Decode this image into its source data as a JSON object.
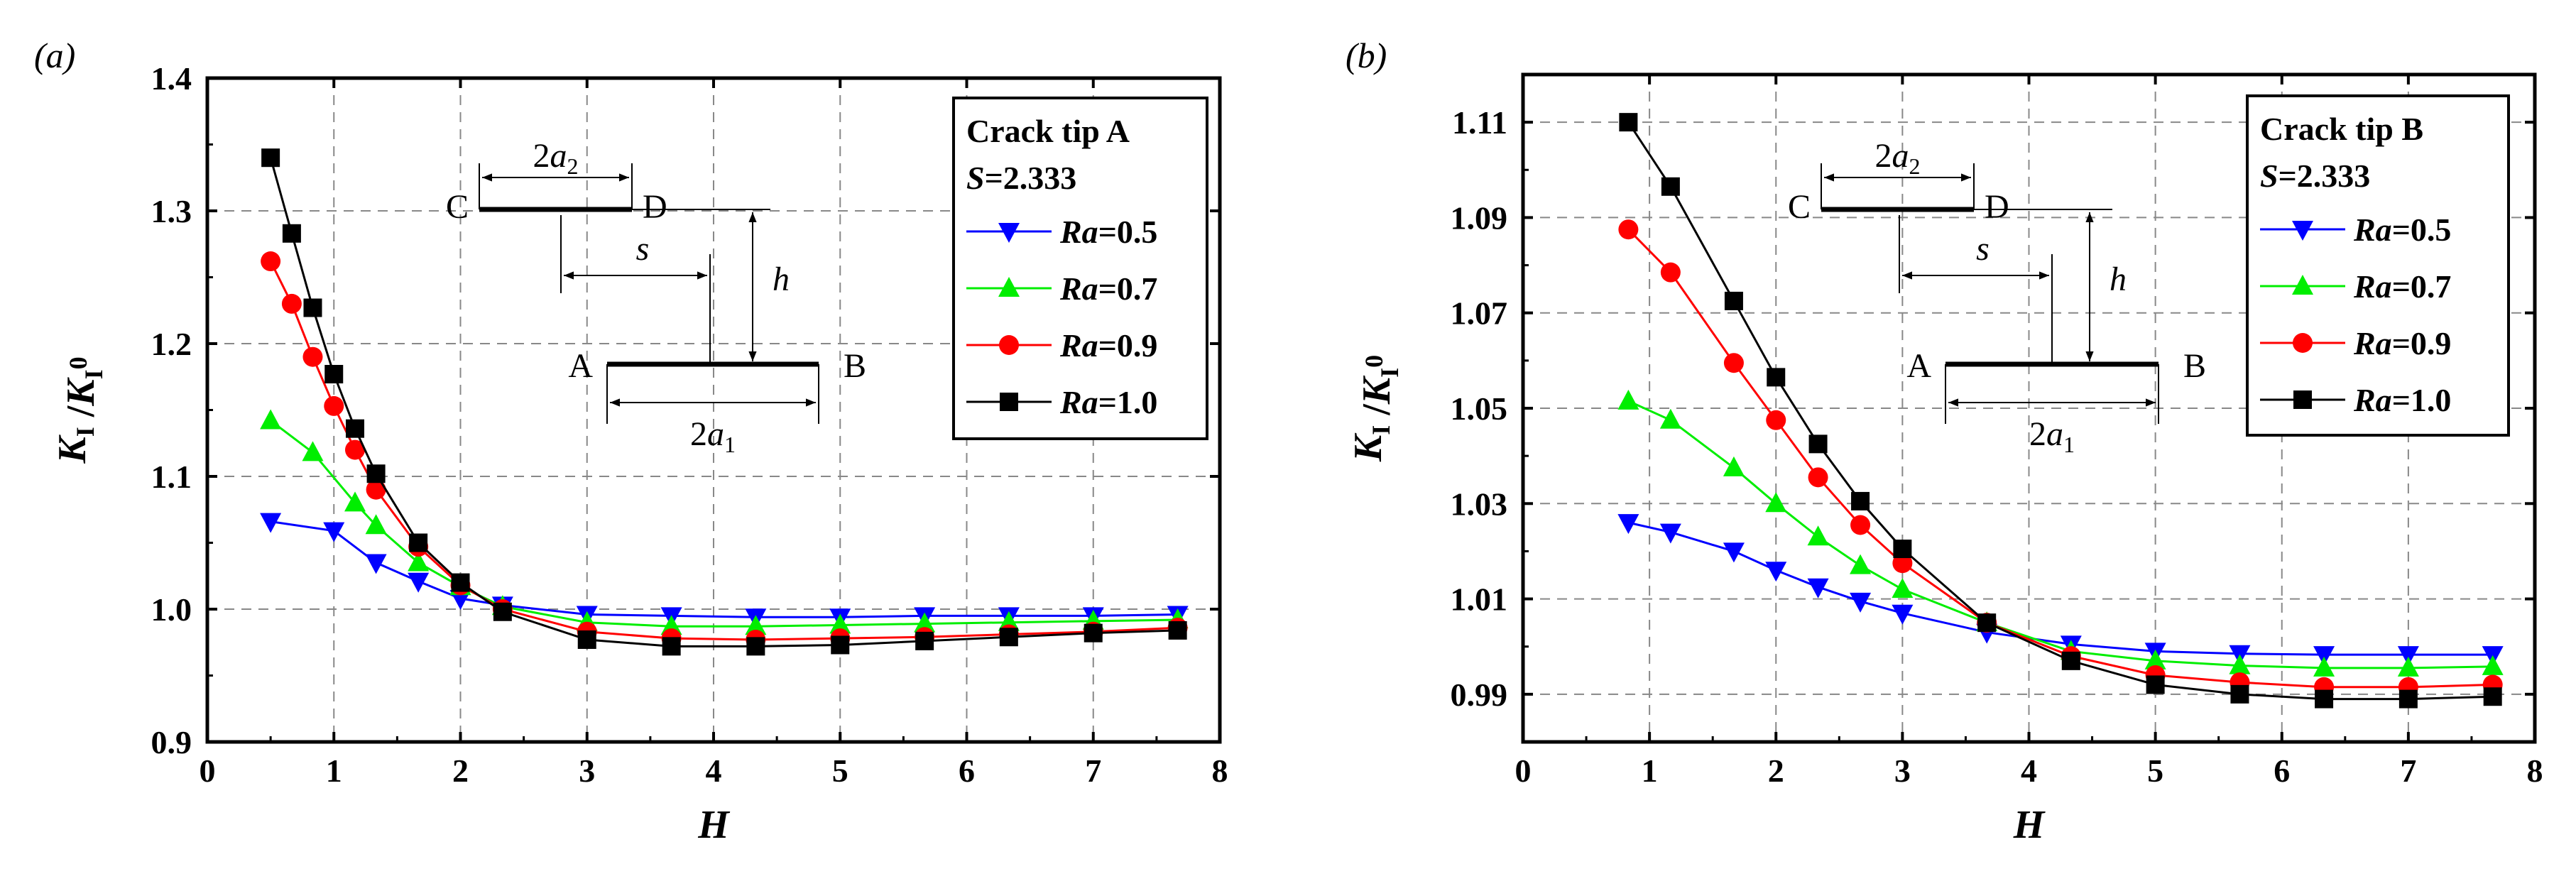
{
  "chart_data": [
    {
      "type": "line",
      "panel_label": "(a)",
      "xlabel": "H",
      "ylabel": "K_I / K_I^0",
      "xlim": [
        0,
        8
      ],
      "ylim": [
        0.9,
        1.4
      ],
      "xticks": [
        "0",
        "1",
        "2",
        "3",
        "4",
        "5",
        "6",
        "7",
        "8"
      ],
      "yticks": [
        "0.9",
        "1.0",
        "1.1",
        "1.2",
        "1.3",
        "1.4"
      ],
      "grid": true,
      "legend_placement": "top-right",
      "legend_title": "Crack tip A",
      "legend_subtitle": "S=2.333",
      "inset_labels": {
        "c": "C",
        "d": "D",
        "a": "A",
        "b": "B",
        "a2": "2a2",
        "s": "s",
        "h": "h",
        "a1": "2a1"
      },
      "series": [
        {
          "name": "Ra=0.5",
          "color": "#0000ff",
          "marker": "triangle-down",
          "x": [
            0.5,
            1,
            1.333,
            1.667,
            2,
            2.333,
            3,
            3.667,
            4.333,
            5,
            5.667,
            6.333,
            7,
            7.667
          ],
          "y": [
            1.066,
            1.059,
            1.035,
            1.021,
            1.008,
            1.003,
            0.996,
            0.995,
            0.994,
            0.994,
            0.995,
            0.995,
            0.995,
            0.996
          ]
        },
        {
          "name": "Ra=0.7",
          "color": "#00ee00",
          "marker": "triangle-up",
          "x": [
            0.5,
            0.833,
            1.167,
            1.333,
            1.667,
            2,
            2.333,
            3,
            3.667,
            4.333,
            5,
            5.667,
            6.333,
            7,
            7.667
          ],
          "y": [
            1.142,
            1.118,
            1.08,
            1.063,
            1.035,
            1.017,
            1.002,
            0.99,
            0.987,
            0.987,
            0.988,
            0.989,
            0.99,
            0.991,
            0.992
          ]
        },
        {
          "name": "Ra=0.9",
          "color": "#ff0000",
          "marker": "circle",
          "x": [
            0.5,
            0.667,
            0.833,
            1,
            1.167,
            1.333,
            1.667,
            2,
            2.333,
            3,
            3.667,
            4.333,
            5,
            5.667,
            6.333,
            7,
            7.667
          ],
          "y": [
            1.262,
            1.23,
            1.19,
            1.153,
            1.12,
            1.09,
            1.047,
            1.018,
            1.0,
            0.983,
            0.978,
            0.977,
            0.978,
            0.979,
            0.981,
            0.983,
            0.986
          ]
        },
        {
          "name": "Ra=1.0",
          "color": "#000000",
          "marker": "square",
          "x": [
            0.5,
            0.667,
            0.833,
            1,
            1.167,
            1.333,
            1.667,
            2,
            2.333,
            3,
            3.667,
            4.333,
            5,
            5.667,
            6.333,
            7,
            7.667
          ],
          "y": [
            1.34,
            1.283,
            1.227,
            1.177,
            1.136,
            1.102,
            1.05,
            1.02,
            0.998,
            0.977,
            0.972,
            0.972,
            0.973,
            0.976,
            0.979,
            0.982,
            0.984
          ]
        }
      ]
    },
    {
      "type": "line",
      "panel_label": "(b)",
      "xlabel": "H",
      "ylabel": "K_I / K_I^0",
      "xlim": [
        0,
        8
      ],
      "ylim": [
        0.98,
        1.12
      ],
      "xticks": [
        "0",
        "1",
        "2",
        "3",
        "4",
        "5",
        "6",
        "7",
        "8"
      ],
      "yticks": [
        "0.99",
        "1.01",
        "1.03",
        "1.05",
        "1.07",
        "1.09",
        "1.11"
      ],
      "grid": true,
      "legend_placement": "top-right",
      "legend_title": "Crack tip B",
      "legend_subtitle": "S=2.333",
      "inset_labels": {
        "c": "C",
        "d": "D",
        "a": "A",
        "b": "B",
        "a2": "2a2",
        "s": "s",
        "h": "h",
        "a1": "2a1"
      },
      "series": [
        {
          "name": "Ra=0.5",
          "color": "#0000ff",
          "marker": "triangle-down",
          "x": [
            0.833,
            1.167,
            1.667,
            2,
            2.333,
            2.667,
            3,
            3.667,
            4.333,
            5,
            5.667,
            6.333,
            7,
            7.667
          ],
          "y": [
            1.026,
            1.024,
            1.02,
            1.016,
            1.0125,
            1.0095,
            1.007,
            1.003,
            1.0005,
            0.999,
            0.9985,
            0.9983,
            0.9983,
            0.9983
          ]
        },
        {
          "name": "Ra=0.7",
          "color": "#00ee00",
          "marker": "triangle-up",
          "x": [
            0.833,
            1.167,
            1.667,
            2,
            2.333,
            2.667,
            3,
            3.667,
            4.333,
            5,
            5.667,
            6.333,
            7,
            7.667
          ],
          "y": [
            1.0515,
            1.0475,
            1.0375,
            1.03,
            1.023,
            1.017,
            1.012,
            1.005,
            0.999,
            0.997,
            0.996,
            0.9955,
            0.9955,
            0.9958
          ]
        },
        {
          "name": "Ra=0.9",
          "color": "#ff0000",
          "marker": "circle",
          "x": [
            0.833,
            1.167,
            1.667,
            2,
            2.333,
            2.667,
            3,
            3.667,
            4.333,
            5,
            5.667,
            6.333,
            7,
            7.667
          ],
          "y": [
            1.0875,
            1.0785,
            1.0595,
            1.0475,
            1.0355,
            1.0255,
            1.0175,
            1.005,
            0.998,
            0.994,
            0.9925,
            0.9915,
            0.9915,
            0.992
          ]
        },
        {
          "name": "Ra=1.0",
          "color": "#000000",
          "marker": "square",
          "x": [
            0.833,
            1.167,
            1.667,
            2,
            2.333,
            2.667,
            3,
            3.667,
            4.333,
            5,
            5.667,
            6.333,
            7,
            7.667
          ],
          "y": [
            1.11,
            1.0965,
            1.0725,
            1.0565,
            1.0425,
            1.0305,
            1.0205,
            1.005,
            0.997,
            0.992,
            0.99,
            0.989,
            0.989,
            0.9895
          ]
        }
      ]
    }
  ]
}
